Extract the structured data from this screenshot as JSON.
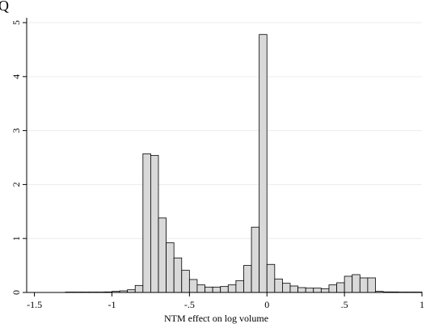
{
  "chart_data": {
    "type": "bar",
    "title": "",
    "xlabel": "NTM effect on log volume",
    "ylabel": "",
    "xlim": [
      -1.55,
      1.0
    ],
    "ylim": [
      0,
      5.15
    ],
    "x_ticks": [
      -1.5,
      -1,
      -0.5,
      0,
      0.5,
      1
    ],
    "x_tick_labels": [
      "-1.5",
      "-1",
      "-.5",
      "0",
      ".5",
      "1"
    ],
    "y_ticks": [
      0,
      1,
      2,
      3,
      4,
      5
    ],
    "y_tick_labels": [
      "0",
      "1",
      "2",
      "3",
      "4",
      "5"
    ],
    "grid": true,
    "bin_width": 0.05,
    "bins": [
      {
        "x0": -1.3,
        "value": 0.0
      },
      {
        "x0": -1.25,
        "value": 0.0
      },
      {
        "x0": -1.2,
        "value": 0.0
      },
      {
        "x0": -1.15,
        "value": 0.0
      },
      {
        "x0": -1.1,
        "value": 0.0
      },
      {
        "x0": -1.05,
        "value": 0.01
      },
      {
        "x0": -1.0,
        "value": 0.02
      },
      {
        "x0": -0.95,
        "value": 0.03
      },
      {
        "x0": -0.9,
        "value": 0.05
      },
      {
        "x0": -0.85,
        "value": 0.13
      },
      {
        "x0": -0.8,
        "value": 2.57
      },
      {
        "x0": -0.75,
        "value": 2.54
      },
      {
        "x0": -0.7,
        "value": 1.38
      },
      {
        "x0": -0.65,
        "value": 0.92
      },
      {
        "x0": -0.6,
        "value": 0.64
      },
      {
        "x0": -0.55,
        "value": 0.41
      },
      {
        "x0": -0.5,
        "value": 0.24
      },
      {
        "x0": -0.45,
        "value": 0.14
      },
      {
        "x0": -0.4,
        "value": 0.1
      },
      {
        "x0": -0.35,
        "value": 0.1
      },
      {
        "x0": -0.3,
        "value": 0.11
      },
      {
        "x0": -0.25,
        "value": 0.14
      },
      {
        "x0": -0.2,
        "value": 0.22
      },
      {
        "x0": -0.15,
        "value": 0.5
      },
      {
        "x0": -0.1,
        "value": 1.21
      },
      {
        "x0": -0.05,
        "value": 4.78
      },
      {
        "x0": 0.0,
        "value": 0.52
      },
      {
        "x0": 0.05,
        "value": 0.25
      },
      {
        "x0": 0.1,
        "value": 0.17
      },
      {
        "x0": 0.15,
        "value": 0.12
      },
      {
        "x0": 0.2,
        "value": 0.09
      },
      {
        "x0": 0.25,
        "value": 0.08
      },
      {
        "x0": 0.3,
        "value": 0.08
      },
      {
        "x0": 0.35,
        "value": 0.07
      },
      {
        "x0": 0.4,
        "value": 0.14
      },
      {
        "x0": 0.45,
        "value": 0.18
      },
      {
        "x0": 0.5,
        "value": 0.3
      },
      {
        "x0": 0.55,
        "value": 0.33
      },
      {
        "x0": 0.6,
        "value": 0.27
      },
      {
        "x0": 0.65,
        "value": 0.27
      },
      {
        "x0": 0.7,
        "value": 0.02
      },
      {
        "x0": 0.75,
        "value": 0.01
      },
      {
        "x0": 0.8,
        "value": 0.01
      },
      {
        "x0": 0.85,
        "value": 0.0
      },
      {
        "x0": 0.9,
        "value": 0.0
      },
      {
        "x0": 0.95,
        "value": 0.0
      }
    ],
    "colors": {
      "bar_fill": "#d9d9d9",
      "bar_stroke": "#000000",
      "grid": "#ececec",
      "axis": "#000000"
    }
  },
  "corner_glyph": "Q"
}
